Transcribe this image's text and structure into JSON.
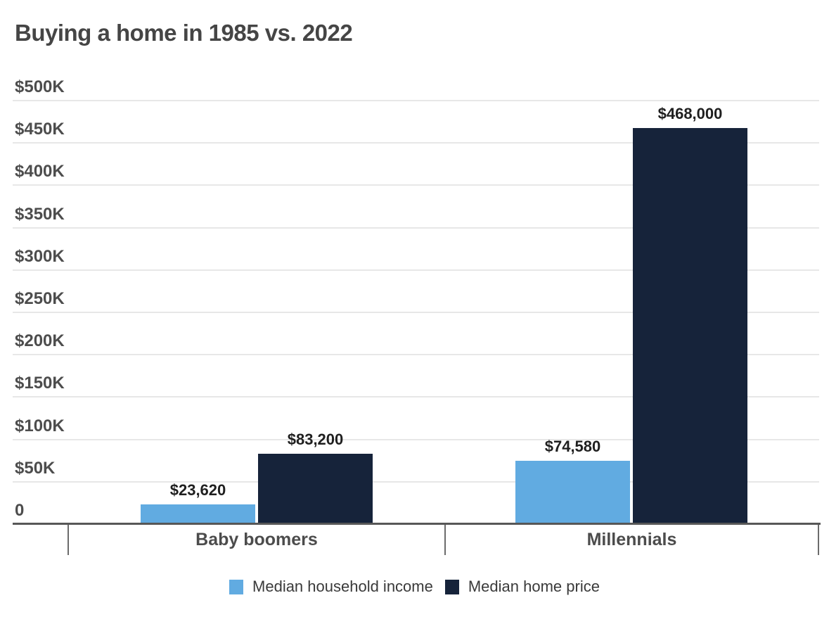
{
  "chart_data": {
    "type": "bar",
    "title": "Buying a home in 1985 vs. 2022",
    "categories": [
      "Baby boomers",
      "Millennials"
    ],
    "series": [
      {
        "name": "Median household income",
        "color": "#61abe1",
        "values": [
          23620,
          74580
        ],
        "value_labels": [
          "$23,620",
          "$74,580"
        ]
      },
      {
        "name": "Median home price",
        "color": "#16233a",
        "values": [
          83200,
          468000
        ],
        "value_labels": [
          "$83,200",
          "$468,000"
        ]
      }
    ],
    "y_ticks": [
      {
        "value": 0,
        "label": "0"
      },
      {
        "value": 50000,
        "label": "$50K"
      },
      {
        "value": 100000,
        "label": "$100K"
      },
      {
        "value": 150000,
        "label": "$150K"
      },
      {
        "value": 200000,
        "label": "$200K"
      },
      {
        "value": 250000,
        "label": "$250K"
      },
      {
        "value": 300000,
        "label": "$300K"
      },
      {
        "value": 350000,
        "label": "$350K"
      },
      {
        "value": 400000,
        "label": "$400K"
      },
      {
        "value": 450000,
        "label": "$450K"
      },
      {
        "value": 500000,
        "label": "$500K"
      }
    ],
    "ylim": [
      0,
      500000
    ],
    "xlabel": "",
    "ylabel": "",
    "grid": true,
    "legend_position": "bottom"
  }
}
